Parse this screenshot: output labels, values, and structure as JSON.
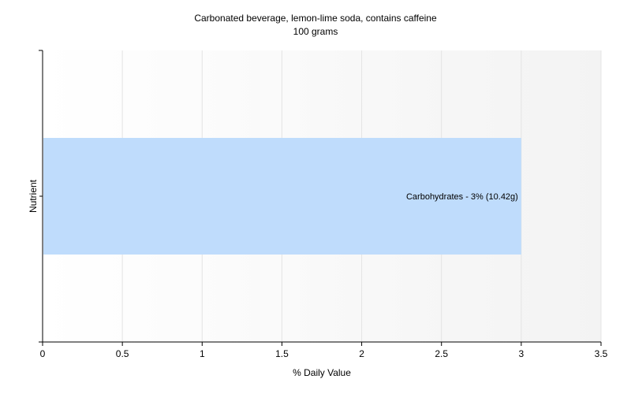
{
  "chart_data": {
    "type": "bar",
    "orientation": "horizontal",
    "title": "Carbonated beverage, lemon-lime soda, contains caffeine",
    "subtitle": "100 grams",
    "xlabel": "% Daily Value",
    "ylabel": "Nutrient",
    "xlim": [
      0,
      3.5
    ],
    "xticks": [
      "0",
      "0.5",
      "1",
      "1.5",
      "2",
      "2.5",
      "3",
      "3.5"
    ],
    "grid": true,
    "categories": [
      "Carbohydrates"
    ],
    "values": [
      3
    ],
    "data_labels": [
      "Carbohydrates - 3% (10.42g)"
    ],
    "bar_color": "#bfdcfc"
  }
}
